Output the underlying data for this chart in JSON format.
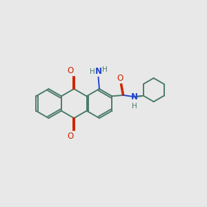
{
  "bg": "#e8e8e8",
  "bond_color": "#4a7a6a",
  "oxygen_color": "#cc2200",
  "nitrogen_color": "#2244cc",
  "lw": 1.4,
  "figsize": [
    3.0,
    3.0
  ],
  "dpi": 100,
  "xlim": [
    0,
    10
  ],
  "ylim": [
    0,
    10
  ]
}
